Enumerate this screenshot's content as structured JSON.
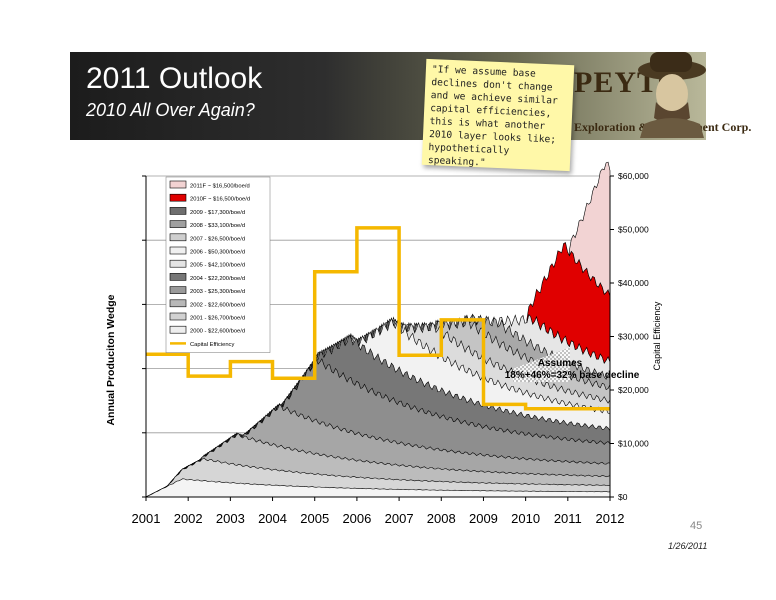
{
  "slide": {
    "title": "2011 Outlook",
    "subtitle": "2010 All Over Again?",
    "logo_name": "PEYTO",
    "logo_tagline": "Exploration & Development Corp.",
    "sticky_note": "\"If we assume base declines don't change and we achieve similar capital efficiencies, this is what another 2010 layer looks like; hypothetically speaking.\"",
    "page_number": "45",
    "date": "1/26/2011"
  },
  "colors": {
    "capital_efficiency_line": "#f5b800",
    "forecast_2011F": "#f2d3d3",
    "forecast_2010F": "#e00000"
  },
  "chart_data": {
    "type": "area",
    "x_ticks": [
      "2001",
      "2002",
      "2003",
      "2004",
      "2005",
      "2006",
      "2007",
      "2008",
      "2009",
      "2010",
      "2011",
      "2012"
    ],
    "xlim": [
      2001,
      2012
    ],
    "left_axis": {
      "label": "Annual Produciton Wedge",
      "ticks_shown": false
    },
    "right_axis": {
      "label": "Capital Efficiency",
      "ylim": [
        0,
        60000
      ],
      "ticks": [
        "$0",
        "$10,000",
        "$20,000",
        "$30,000",
        "$40,000",
        "$50,000",
        "$60,000"
      ]
    },
    "grid": true,
    "legend_placement": "top-left",
    "legend": [
      "2011F ~ $16,500/boe/d",
      "2010F ~ $16,500/boe/d",
      "2009 - $17,300/boe/d",
      "2008 - $33,100/boe/d",
      "2007 - $26,500/boe/d",
      "2006 - $50,300/boe/d",
      "2005 - $42,100/boe/d",
      "2004 - $22,200/boe/d",
      "2003 - $25,300/boe/d",
      "2002 - $22,600/boe/d",
      "2001 - $26,700/boe/d",
      "2000 - $22,600/boe/d",
      "Capital Efficiency"
    ],
    "capital_efficiency": {
      "name": "Capital Efficiency",
      "years": [
        2001,
        2002,
        2003,
        2004,
        2005,
        2006,
        2007,
        2008,
        2009,
        2010,
        2011
      ],
      "values": [
        26700,
        22600,
        25300,
        22200,
        42100,
        50300,
        26500,
        33100,
        17300,
        16500,
        16500
      ]
    },
    "annotation": {
      "text_line1": "Assumes",
      "text_line2": "18%+46%=32% base decline"
    }
  }
}
